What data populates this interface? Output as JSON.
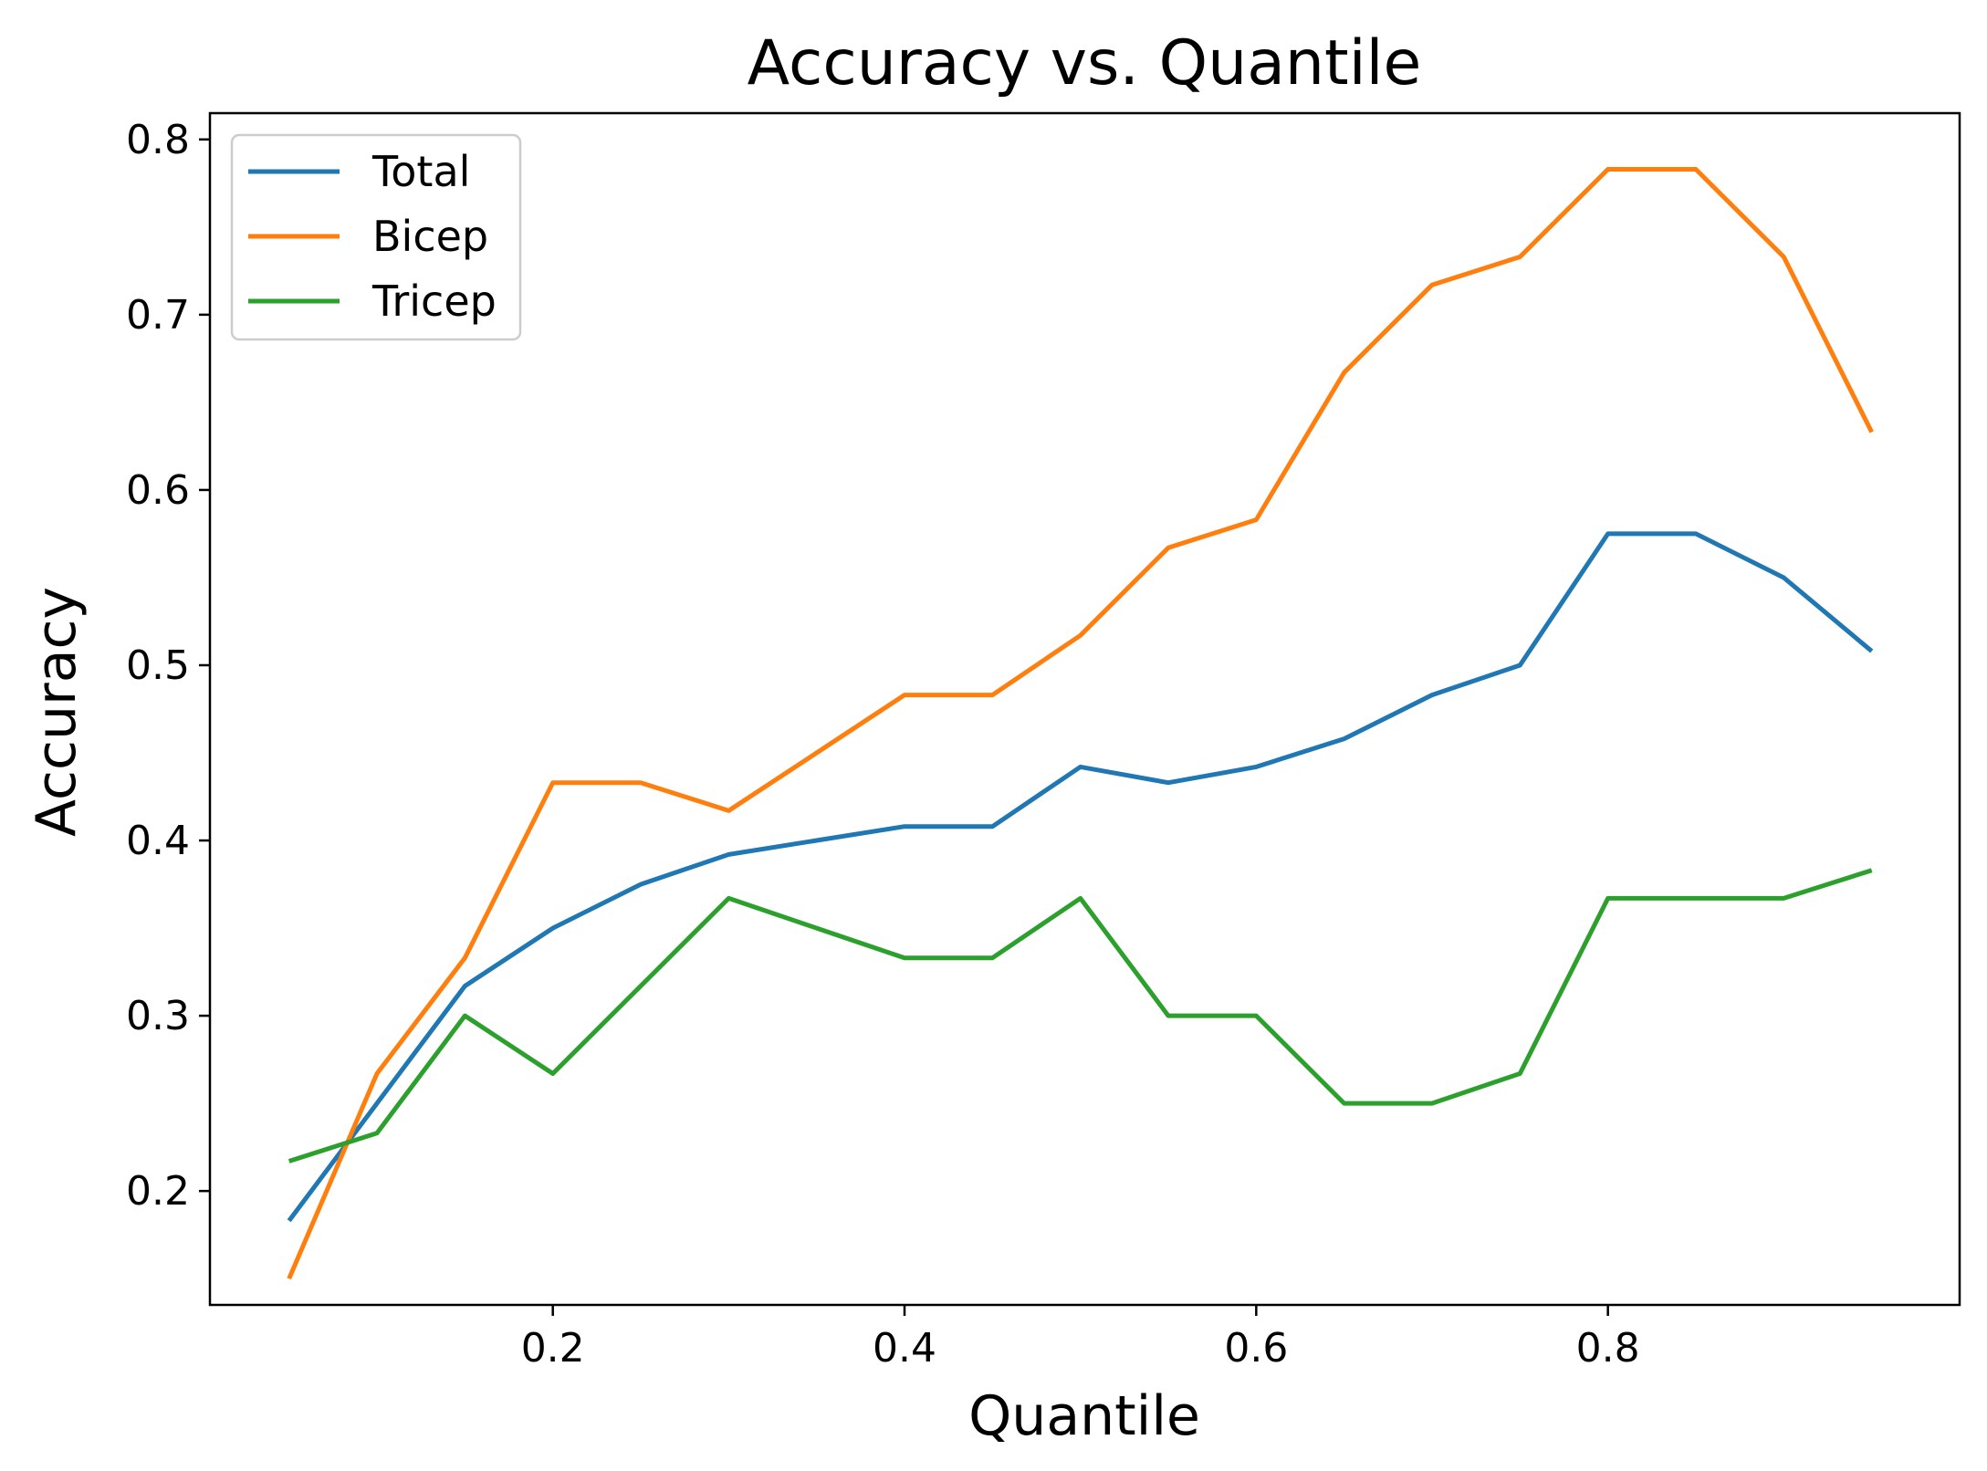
{
  "chart_data": {
    "type": "line",
    "title": "Accuracy vs. Quantile",
    "xlabel": "Quantile",
    "ylabel": "Accuracy",
    "xlim": [
      0.005,
      1.0
    ],
    "ylim": [
      0.135,
      0.815
    ],
    "xticks": [
      0.2,
      0.4,
      0.6,
      0.8
    ],
    "xtick_labels": [
      "0.2",
      "0.4",
      "0.6",
      "0.8"
    ],
    "yticks": [
      0.2,
      0.3,
      0.4,
      0.5,
      0.6,
      0.7,
      0.8
    ],
    "ytick_labels": [
      "0.2",
      "0.3",
      "0.4",
      "0.5",
      "0.6",
      "0.7",
      "0.8"
    ],
    "grid": false,
    "legend_position": "top-left",
    "x": [
      0.05,
      0.1,
      0.15,
      0.2,
      0.25,
      0.3,
      0.35,
      0.4,
      0.45,
      0.5,
      0.55,
      0.6,
      0.65,
      0.7,
      0.75,
      0.8,
      0.85,
      0.9,
      0.95
    ],
    "series": [
      {
        "name": "Total",
        "color": "#1f77b4",
        "values": [
          0.183,
          0.25,
          0.317,
          0.35,
          0.375,
          0.392,
          0.4,
          0.408,
          0.408,
          0.442,
          0.433,
          0.442,
          0.458,
          0.483,
          0.5,
          0.575,
          0.575,
          0.55,
          0.508
        ]
      },
      {
        "name": "Bicep",
        "color": "#ff7f0e",
        "values": [
          0.15,
          0.267,
          0.333,
          0.433,
          0.433,
          0.417,
          0.45,
          0.483,
          0.483,
          0.517,
          0.567,
          0.583,
          0.667,
          0.717,
          0.733,
          0.783,
          0.783,
          0.733,
          0.633
        ]
      },
      {
        "name": "Tricep",
        "color": "#2ca02c",
        "values": [
          0.217,
          0.233,
          0.3,
          0.267,
          0.317,
          0.367,
          0.35,
          0.333,
          0.333,
          0.367,
          0.3,
          0.3,
          0.25,
          0.25,
          0.267,
          0.367,
          0.367,
          0.367,
          0.383
        ]
      }
    ]
  }
}
